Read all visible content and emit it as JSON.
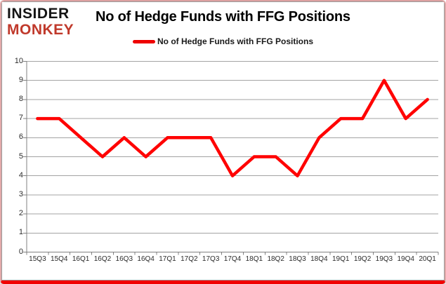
{
  "brand": {
    "line1": "INSIDER",
    "line2": "MONKEY"
  },
  "header": {
    "title": "No of Hedge Funds with FFG Positions"
  },
  "legend": {
    "label": "No of Hedge Funds with FFG Positions",
    "swatch_color": "#ee0000"
  },
  "chart_data": {
    "type": "line",
    "title": "No of Hedge Funds with FFG Positions",
    "categories": [
      "15Q3",
      "15Q4",
      "16Q1",
      "16Q2",
      "16Q3",
      "16Q4",
      "17Q1",
      "17Q2",
      "17Q3",
      "17Q4",
      "18Q1",
      "18Q2",
      "18Q3",
      "18Q4",
      "19Q1",
      "19Q2",
      "19Q3",
      "19Q4",
      "20Q1"
    ],
    "series": [
      {
        "name": "No of Hedge Funds with FFG Positions",
        "color": "#ff0000",
        "values": [
          7,
          7,
          6,
          5,
          6,
          5,
          6,
          6,
          6,
          4,
          5,
          5,
          4,
          6,
          7,
          7,
          9,
          7,
          8
        ]
      }
    ],
    "ylim": [
      0,
      10
    ],
    "yticks": [
      0,
      1,
      2,
      3,
      4,
      5,
      6,
      7,
      8,
      9,
      10
    ],
    "xlabel": "",
    "ylabel": "",
    "grid": true,
    "legend_position": "top-center"
  },
  "colors": {
    "line_red": "#ff0000",
    "logo_red": "#c0392b",
    "gridline": "#a3a3a3",
    "axis": "#808080",
    "bottom_border": "#f10000",
    "side_border": "#e2a9a9"
  }
}
